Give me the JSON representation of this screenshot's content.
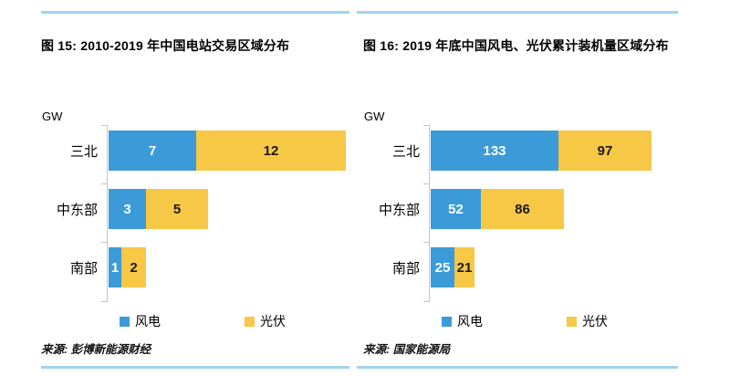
{
  "accent_colors": {
    "rule_blue": "#9FD4F0",
    "axis_gray": "#C5C5C5",
    "wind_blue": "#3B9BD8",
    "pv_yellow": "#F7C746"
  },
  "chart_data": [
    {
      "type": "bar",
      "orientation": "horizontal",
      "stacked": true,
      "title": "图 15: 2010-2019 年中国电站交易区域分布",
      "unit_label": "GW",
      "categories": [
        "三北",
        "中东部",
        "南部"
      ],
      "series": [
        {
          "key": "wind",
          "name": "风电",
          "values": [
            7,
            3,
            1
          ],
          "color": "#3B9BD8",
          "value_text_color": "#FFFFFF"
        },
        {
          "key": "pv",
          "name": "光伏",
          "values": [
            12,
            5,
            2
          ],
          "color": "#F7C746",
          "value_text_color": "#1A1A1A"
        }
      ],
      "xlim": [
        0,
        19.6
      ],
      "grid": false,
      "legend_position": "bottom",
      "source": "来源: 彭博新能源财经"
    },
    {
      "type": "bar",
      "orientation": "horizontal",
      "stacked": true,
      "title": "图 16: 2019 年底中国风电、光伏累计装机量区域分布",
      "unit_label": "GW",
      "categories": [
        "三北",
        "中东部",
        "南部"
      ],
      "series": [
        {
          "key": "wind",
          "name": "风电",
          "values": [
            133,
            52,
            25
          ],
          "color": "#3B9BD8",
          "value_text_color": "#FFFFFF"
        },
        {
          "key": "pv",
          "name": "光伏",
          "values": [
            97,
            86,
            21
          ],
          "color": "#F7C746",
          "value_text_color": "#1A1A1A"
        }
      ],
      "xlim": [
        0,
        254
      ],
      "grid": false,
      "legend_position": "bottom",
      "source": "来源: 国家能源局"
    }
  ]
}
